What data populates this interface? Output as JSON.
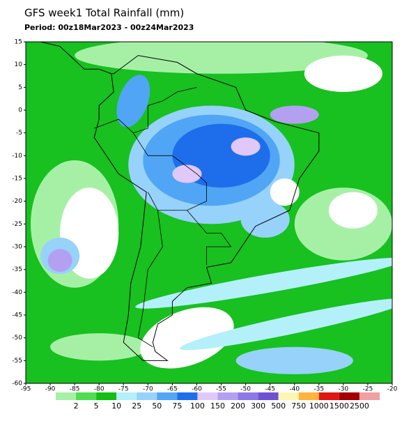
{
  "map": {
    "title": "GFS week1 Total Rainfall (mm)",
    "period": "Period: 00z18Mar2023 - 00z24Mar2023",
    "xlim": [
      -95,
      -20
    ],
    "ylim": [
      -60,
      15
    ],
    "xticks": [
      -95,
      -90,
      -85,
      -80,
      -75,
      -70,
      -65,
      -60,
      -55,
      -50,
      -45,
      -40,
      -35,
      -30,
      -25,
      -20
    ],
    "yticks": [
      15,
      10,
      5,
      0,
      -5,
      -10,
      -15,
      -20,
      -25,
      -30,
      -35,
      -40,
      -45,
      -50,
      -55,
      -60
    ],
    "colorbar": {
      "levels": [
        2,
        5,
        10,
        25,
        50,
        75,
        100,
        150,
        200,
        300,
        500,
        750,
        1000,
        1500,
        2500
      ],
      "colors": [
        "#a6f0a6",
        "#50dc50",
        "#14be14",
        "#b4f0fa",
        "#96d2fa",
        "#50a5f5",
        "#1e6eeb",
        "#e1c8fa",
        "#b4a0f0",
        "#8c78e6",
        "#7050d2",
        "#fff5b4",
        "#ffb43c",
        "#e11414",
        "#a50000",
        "#f0a0a0"
      ]
    }
  }
}
